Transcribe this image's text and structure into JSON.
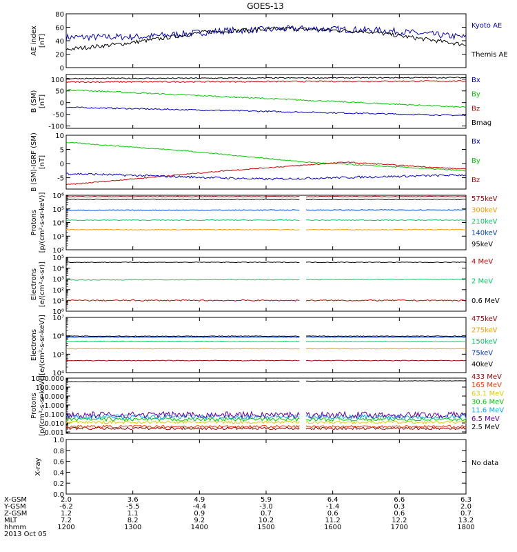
{
  "title": "GOES-13",
  "time_axis": {
    "row_labels": [
      "X-GSM",
      "Y-GSM",
      "Z-GSM",
      "MLT",
      "hhmm"
    ],
    "columns": [
      {
        "hhmm": "1200",
        "values": [
          "2.0",
          "-6.2",
          "1.2",
          "7.2",
          "1200"
        ]
      },
      {
        "hhmm": "1300",
        "values": [
          "3.6",
          "-5.5",
          "1.1",
          "8.2",
          "1300"
        ]
      },
      {
        "hhmm": "1400",
        "values": [
          "4.9",
          "-4.4",
          "0.9",
          "9.2",
          "1400"
        ]
      },
      {
        "hhmm": "1500",
        "values": [
          "5.9",
          "-3.0",
          "0.7",
          "10.2",
          "1500"
        ]
      },
      {
        "hhmm": "1600",
        "values": [
          "6.4",
          "-1.4",
          "0.6",
          "11.2",
          "1600"
        ]
      },
      {
        "hhmm": "1700",
        "values": [
          "6.6",
          "0.3",
          "0.6",
          "12.2",
          "1700"
        ]
      },
      {
        "hhmm": "1800",
        "values": [
          "6.3",
          "2.0",
          "0.7",
          "13.2",
          "1800"
        ]
      }
    ],
    "date": "2013 Oct 05"
  },
  "chart_data": [
    {
      "type": "line",
      "ylabel": "AE index\n[nT]",
      "scale": "linear",
      "ylim": [
        0,
        80
      ],
      "yticks": [
        {
          "v": 0,
          "label": "0"
        },
        {
          "v": 20,
          "label": "20"
        },
        {
          "v": 40,
          "label": "40"
        },
        {
          "v": 60,
          "label": "60"
        },
        {
          "v": 80,
          "label": "80"
        }
      ],
      "series": [
        {
          "name": "Kyoto AE",
          "color": "#0000cc",
          "shape": [
            [
              0,
              45
            ],
            [
              0.2,
              46
            ],
            [
              0.4,
              55
            ],
            [
              0.6,
              58
            ],
            [
              0.8,
              55
            ],
            [
              1,
              45
            ]
          ],
          "noise": 2.5
        },
        {
          "name": "Themis AE",
          "color": "#000000",
          "shape": [
            [
              0,
              27
            ],
            [
              0.15,
              36
            ],
            [
              0.35,
              53
            ],
            [
              0.55,
              58
            ],
            [
              0.75,
              54
            ],
            [
              1,
              34
            ]
          ],
          "noise": 1.5
        }
      ]
    },
    {
      "type": "line",
      "ylabel": "B (SM)\n[nT]",
      "scale": "linear",
      "ylim": [
        -110,
        120
      ],
      "yticks": [
        {
          "v": -100,
          "label": "-100"
        },
        {
          "v": -50,
          "label": "-50"
        },
        {
          "v": 0,
          "label": "0"
        },
        {
          "v": 50,
          "label": "50"
        },
        {
          "v": 100,
          "label": "100"
        }
      ],
      "series": [
        {
          "name": "Bx",
          "color": "#0000cc",
          "shape": [
            [
              0,
              -20
            ],
            [
              1,
              -55
            ]
          ],
          "noise": 0.5
        },
        {
          "name": "By",
          "color": "#00cc00",
          "shape": [
            [
              0,
              55
            ],
            [
              1,
              -20
            ]
          ],
          "noise": 0.5
        },
        {
          "name": "Bz",
          "color": "#cc0000",
          "shape": [
            [
              0,
              88
            ],
            [
              1,
              92
            ]
          ],
          "noise": 0.5
        },
        {
          "name": "Bmag",
          "color": "#000000",
          "shape": [
            [
              0,
              103
            ],
            [
              1,
              107
            ]
          ],
          "noise": 0.4
        }
      ]
    },
    {
      "type": "line",
      "ylabel": "B (SM)-IGRF (SM)\n[nT]",
      "scale": "linear",
      "ylim": [
        -9,
        10
      ],
      "yticks": [
        {
          "v": -5,
          "label": "-5"
        },
        {
          "v": 0,
          "label": "0"
        },
        {
          "v": 5,
          "label": "5"
        },
        {
          "v": 10,
          "label": "10"
        }
      ],
      "series": [
        {
          "name": "Bx",
          "color": "#0000cc",
          "shape": [
            [
              0,
              -3.5
            ],
            [
              0.5,
              -5.5
            ],
            [
              1,
              -4
            ]
          ],
          "noise": 0.8
        },
        {
          "name": "By",
          "color": "#00cc00",
          "shape": [
            [
              0,
              7.5
            ],
            [
              0.3,
              4.5
            ],
            [
              0.6,
              0.5
            ],
            [
              1,
              -2.5
            ]
          ],
          "noise": 0.4
        },
        {
          "name": "Bz",
          "color": "#cc0000",
          "shape": [
            [
              0,
              -7.5
            ],
            [
              0.4,
              -2.5
            ],
            [
              0.7,
              0.5
            ],
            [
              1,
              -2
            ]
          ],
          "noise": 0.4
        }
      ]
    },
    {
      "type": "line",
      "ylabel": "Protons\n[p/(cm²-s-sr-keV)]",
      "scale": "log",
      "ylim": [
        100,
        1000000
      ],
      "yticks": [
        {
          "v": 100,
          "label": "10²"
        },
        {
          "v": 1000,
          "label": "10³"
        },
        {
          "v": 10000,
          "label": "10⁴"
        },
        {
          "v": 100000,
          "label": "10⁵"
        },
        {
          "v": 1000000,
          "label": "10⁶"
        }
      ],
      "series": [
        {
          "name": "575keV",
          "color": "#990000",
          "shape": [
            [
              0,
              800000
            ],
            [
              1,
              800000
            ]
          ],
          "noise": 0.03
        },
        {
          "name": "300keV",
          "color": "#ff9900",
          "shape": [
            [
              0,
              3000
            ],
            [
              1,
              3000
            ]
          ],
          "noise": 0.03
        },
        {
          "name": "210keV",
          "color": "#00cc66",
          "shape": [
            [
              0,
              15000
            ],
            [
              1,
              15000
            ]
          ],
          "noise": 0.03
        },
        {
          "name": "140keV",
          "color": "#0044cc",
          "shape": [
            [
              0,
              80000
            ],
            [
              1,
              85000
            ]
          ],
          "noise": 0.03
        },
        {
          "name": "95keV",
          "color": "#000000",
          "shape": [
            [
              0,
              500000
            ],
            [
              1,
              500000
            ]
          ],
          "noise": 0.03
        }
      ]
    },
    {
      "type": "line",
      "ylabel": "Electrons\n[e/(cm²-s-sr)]",
      "scale": "log",
      "ylim": [
        1,
        100000
      ],
      "yticks": [
        {
          "v": 1,
          "label": "10⁰"
        },
        {
          "v": 10,
          "label": "10¹"
        },
        {
          "v": 100,
          "label": "10²"
        },
        {
          "v": 1000,
          "label": "10³"
        },
        {
          "v": 10000,
          "label": "10⁴"
        },
        {
          "v": 100000,
          "label": "10⁵"
        }
      ],
      "series": [
        {
          "name": "4 MeV",
          "color": "#cc0000",
          "shape": [
            [
              0,
              10
            ],
            [
              1,
              10
            ]
          ],
          "noise": 0.06
        },
        {
          "name": "2 MeV",
          "color": "#00cc66",
          "shape": [
            [
              0,
              800
            ],
            [
              1,
              900
            ]
          ],
          "noise": 0.03
        },
        {
          "name": "0.6 MeV",
          "color": "#000000",
          "shape": [
            [
              0,
              35000
            ],
            [
              1,
              35000
            ]
          ],
          "noise": 0.03
        }
      ]
    },
    {
      "type": "line",
      "ylabel": "Electrons\n[e/(cm²-s-sr-keV)]",
      "scale": "log",
      "ylim": [
        10000,
        10000000
      ],
      "yticks": [
        {
          "v": 10000,
          "label": "10⁴"
        },
        {
          "v": 100000,
          "label": "10⁵"
        },
        {
          "v": 1000000,
          "label": "10⁶"
        },
        {
          "v": 10000000,
          "label": "10⁷"
        }
      ],
      "series": [
        {
          "name": "475keV",
          "color": "#990000",
          "shape": [
            [
              0,
              45000
            ],
            [
              1,
              45000
            ]
          ],
          "noise": 0.02
        },
        {
          "name": "275keV",
          "color": "#ff9900",
          "shape": [
            [
              0,
              200000
            ],
            [
              1,
              200000
            ]
          ],
          "noise": 0.02
        },
        {
          "name": "150keV",
          "color": "#00cc66",
          "shape": [
            [
              0,
              500000
            ],
            [
              1,
              480000
            ]
          ],
          "noise": 0.02
        },
        {
          "name": "75keV",
          "color": "#0033cc",
          "shape": [
            [
              0,
              850000
            ],
            [
              1,
              850000
            ]
          ],
          "noise": 0.02
        },
        {
          "name": "40keV",
          "color": "#000000",
          "shape": [
            [
              0,
              950000
            ],
            [
              1,
              950000
            ]
          ],
          "noise": 0.02
        }
      ]
    },
    {
      "type": "line",
      "ylabel": "Protons\n[p/(cm²-s-sr-keV)]",
      "scale": "log",
      "ylim": [
        0.0007,
        1000
      ],
      "yticks": [
        {
          "v": 0.001,
          "label": "0.001"
        },
        {
          "v": 0.01,
          "label": "0.010"
        },
        {
          "v": 0.1,
          "label": "0.100"
        },
        {
          "v": 1,
          "label": "1.000"
        },
        {
          "v": 10,
          "label": "10.000"
        },
        {
          "v": 100,
          "label": "100.000"
        },
        {
          "v": 1000,
          "label": "1000.000"
        }
      ],
      "series": [
        {
          "name": "433 MeV",
          "color": "#990000",
          "shape": [
            [
              0,
              0.0025
            ],
            [
              1,
              0.0025
            ]
          ],
          "noise": 0.15
        },
        {
          "name": "165 MeV",
          "color": "#ff3300",
          "shape": [
            [
              0,
              0.004
            ],
            [
              1,
              0.004
            ]
          ],
          "noise": 0.15
        },
        {
          "name": "63.1 MeV",
          "color": "#ddcc00",
          "shape": [
            [
              0,
              0.012
            ],
            [
              1,
              0.012
            ]
          ],
          "noise": 0.15
        },
        {
          "name": "30.6 MeV",
          "color": "#00cc00",
          "shape": [
            [
              0,
              0.025
            ],
            [
              1,
              0.025
            ]
          ],
          "noise": 0.2
        },
        {
          "name": "11.6 MeV",
          "color": "#00aaff",
          "shape": [
            [
              0,
              0.05
            ],
            [
              1,
              0.05
            ]
          ],
          "noise": 0.25
        },
        {
          "name": "6.5 MeV",
          "color": "#6600aa",
          "shape": [
            [
              0,
              0.08
            ],
            [
              1,
              0.08
            ]
          ],
          "noise": 0.35
        },
        {
          "name": "2.5 MeV",
          "color": "#000000",
          "shape": [
            [
              0,
              400
            ],
            [
              1,
              500
            ]
          ],
          "noise": 0.02
        }
      ]
    },
    {
      "type": "line",
      "ylabel": "X-ray",
      "scale": "linear",
      "ylim": [
        0,
        1
      ],
      "yticks": [
        {
          "v": 0,
          "label": "0.0"
        },
        {
          "v": 0.2,
          "label": "0.2"
        },
        {
          "v": 0.4,
          "label": "0.4"
        },
        {
          "v": 0.6,
          "label": "0.6"
        },
        {
          "v": 0.8,
          "label": "0.8"
        },
        {
          "v": 1,
          "label": "1.0"
        }
      ],
      "series": [],
      "note": "No data"
    }
  ]
}
